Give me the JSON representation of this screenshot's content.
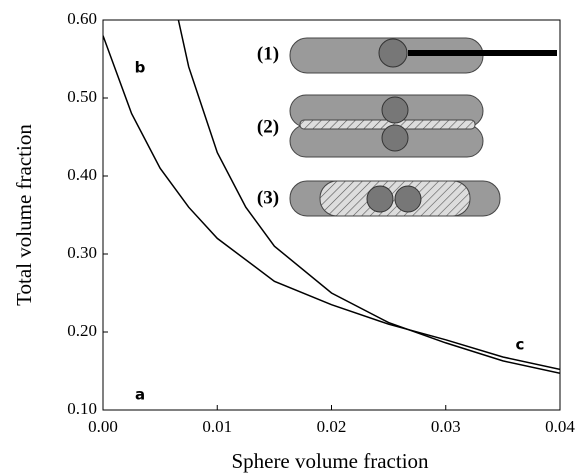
{
  "chart_data": {
    "type": "line",
    "x_label": "Sphere volume fraction",
    "y_label": "Total volume fraction",
    "xlim": [
      0,
      0.04
    ],
    "ylim": [
      0.1,
      0.6
    ],
    "xticks": [
      {
        "value": 0,
        "label": "0.00"
      },
      {
        "value": 0.01,
        "label": "0.01"
      },
      {
        "value": 0.02,
        "label": "0.02"
      },
      {
        "value": 0.03,
        "label": "0.03"
      },
      {
        "value": 0.04,
        "label": "0.04"
      }
    ],
    "yticks": [
      {
        "value": 0.1,
        "label": "0.10"
      },
      {
        "value": 0.2,
        "label": "0.20"
      },
      {
        "value": 0.3,
        "label": "0.30"
      },
      {
        "value": 0.4,
        "label": "0.40"
      },
      {
        "value": 0.5,
        "label": "0.50"
      },
      {
        "value": 0.6,
        "label": "0.60"
      }
    ],
    "series": [
      {
        "color": "#000000",
        "x": [
          0,
          0.0025,
          0.005,
          0.0075,
          0.01,
          0.015,
          0.02,
          0.025,
          0.03,
          0.035,
          0.04
        ],
        "values": [
          0.58,
          0.48,
          0.41,
          0.36,
          0.32,
          0.265,
          0.235,
          0.21,
          0.19,
          0.168,
          0.152
        ]
      },
      {
        "color": "#000000",
        "x": [
          0.0066,
          0.0075,
          0.01,
          0.0125,
          0.015,
          0.02,
          0.025,
          0.03,
          0.035,
          0.04
        ],
        "values": [
          0.6,
          0.54,
          0.43,
          0.36,
          0.31,
          0.25,
          0.212,
          0.186,
          0.163,
          0.147
        ]
      }
    ],
    "annotations": [
      "a",
      "b",
      "c"
    ],
    "inset_labels": [
      "(1)",
      "(2)",
      "(3)"
    ]
  }
}
